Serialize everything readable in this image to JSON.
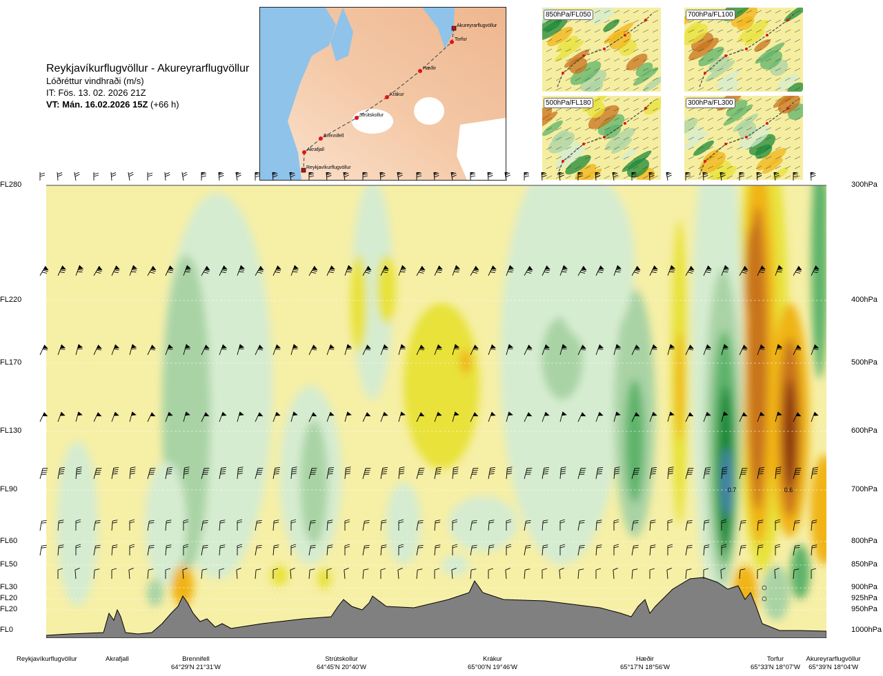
{
  "title": {
    "route": "Reykjavíkurflugvöllur - Akureyrarflugvöllur",
    "variable": "Lóðréttur vindhraði (m/s)",
    "issue_time": "IT: Fös. 13. 02. 2026 21Z",
    "valid_time_bold": "VT: Mán. 16.02.2026 15Z",
    "valid_time_offset": " (+66 h)"
  },
  "map_inset": {
    "points": [
      {
        "name": "Akureyrarflugvöllur"
      },
      {
        "name": "Torfur"
      },
      {
        "name": "Hæðir"
      },
      {
        "name": "Krákur"
      },
      {
        "name": "Strútskollur"
      },
      {
        "name": "Brennifell"
      },
      {
        "name": "Akrafjall"
      },
      {
        "name": "Reykjavíkurflugvöllur"
      }
    ]
  },
  "level_maps": [
    {
      "label": "850hPa/FL050"
    },
    {
      "label": "700hPa/FL100"
    },
    {
      "label": "500hPa/FL180"
    },
    {
      "label": "300hPa/FL300"
    }
  ],
  "colors": {
    "strong_down": "#8b3a10",
    "down_3": "#c8731d",
    "down_2": "#f0b418",
    "down_1": "#e8e23a",
    "neutral": "#f6efa6",
    "up_1": "#d6ecd0",
    "up_2": "#a9d3a5",
    "up_3": "#5db36b",
    "up_4": "#1e8a3a",
    "strong_up": "#4a7fb5",
    "terrain": "#808080"
  },
  "chart_data": {
    "type": "heatmap",
    "title": "Lóðréttur vindhraði (m/s)",
    "xlabel": "",
    "ylabel": "",
    "y_levels_left": [
      "FL280",
      "FL220",
      "FL170",
      "FL130",
      "FL90",
      "FL60",
      "FL50",
      "FL30",
      "FL20",
      "FL20",
      "FL0"
    ],
    "y_levels_right": [
      "300hPa",
      "400hPa",
      "500hPa",
      "600hPa",
      "700hPa",
      "800hPa",
      "850hPa",
      "900hPa",
      "925hPa",
      "950hPa",
      "1000hPa"
    ],
    "locations": [
      {
        "name": "Reykjavíkurflugvöllur",
        "coord": ""
      },
      {
        "name": "Akrafjall",
        "coord": ""
      },
      {
        "name": "Brennifell",
        "coord": "64°29'N 21°31'W"
      },
      {
        "name": "Strútskollur",
        "coord": "64°45'N 20°40'W"
      },
      {
        "name": "Krákur",
        "coord": "65°00'N 19°46'W"
      },
      {
        "name": "Hæðir",
        "coord": "65°17'N 18°56'W"
      },
      {
        "name": "Torfur",
        "coord": "65°33'N 18°07'W"
      },
      {
        "name": "Akureyrarflugvöllur",
        "coord": "65°39'N 18°04'W"
      }
    ],
    "annotations": [
      {
        "text": "0.7",
        "level": "FL90"
      },
      {
        "text": "0.6",
        "level": "FL90"
      }
    ]
  }
}
